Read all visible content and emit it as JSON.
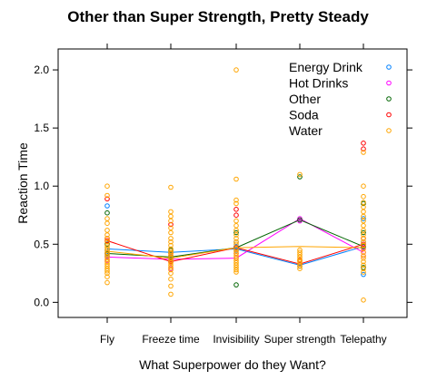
{
  "chart_data": {
    "type": "scatter",
    "title": "Other than Super Strength, Pretty Steady",
    "xlabel": "What Superpower do they Want?",
    "ylabel": "Reaction Time",
    "categories": [
      "Fly",
      "Freeze time",
      "Invisibility",
      "Super strength",
      "Telepathy"
    ],
    "yticks": [
      0.0,
      0.5,
      1.0,
      1.5,
      2.0
    ],
    "ytick_labels": [
      "0.0",
      "0.5",
      "1.0",
      "1.5",
      "2.0"
    ],
    "ylim": [
      -0.13,
      2.18
    ],
    "grid": false,
    "legend_position": "top-right",
    "series": [
      {
        "name": "Energy Drink",
        "color": "#0080ff",
        "mean_line": [
          0.46,
          0.43,
          0.46,
          0.32,
          0.48
        ],
        "points": [
          [
            0,
            0.83
          ],
          [
            0,
            0.5
          ],
          [
            0,
            0.45
          ],
          [
            0,
            0.4
          ],
          [
            1,
            0.44
          ],
          [
            1,
            0.4
          ],
          [
            1,
            0.36
          ],
          [
            2,
            0.52
          ],
          [
            2,
            0.48
          ],
          [
            2,
            0.45
          ],
          [
            3,
            0.33
          ],
          [
            3,
            0.31
          ],
          [
            4,
            0.24
          ],
          [
            4,
            0.48
          ],
          [
            4,
            0.72
          ],
          [
            4,
            0.52
          ]
        ]
      },
      {
        "name": "Hot Drinks",
        "color": "#ff00ff",
        "mean_line": [
          0.39,
          0.37,
          0.38,
          0.72,
          0.43
        ],
        "points": [
          [
            0,
            0.39
          ],
          [
            0,
            0.42
          ],
          [
            0,
            0.36
          ],
          [
            1,
            0.29
          ],
          [
            1,
            0.35
          ],
          [
            1,
            0.4
          ],
          [
            2,
            0.38
          ],
          [
            2,
            0.42
          ],
          [
            3,
            0.72
          ],
          [
            3,
            0.7
          ],
          [
            4,
            0.43
          ],
          [
            4,
            0.47
          ],
          [
            4,
            0.4
          ]
        ]
      },
      {
        "name": "Other",
        "color": "#006400",
        "mean_line": [
          0.42,
          0.39,
          0.47,
          0.71,
          0.48
        ],
        "points": [
          [
            0,
            0.77
          ],
          [
            0,
            0.5
          ],
          [
            0,
            0.42
          ],
          [
            1,
            0.39
          ],
          [
            1,
            0.45
          ],
          [
            2,
            0.15
          ],
          [
            2,
            0.47
          ],
          [
            2,
            0.6
          ],
          [
            3,
            1.08
          ],
          [
            3,
            0.71
          ],
          [
            4,
            0.85
          ],
          [
            4,
            0.6
          ],
          [
            4,
            0.48
          ],
          [
            4,
            0.3
          ]
        ]
      },
      {
        "name": "Soda",
        "color": "#ff0000",
        "mean_line": [
          0.53,
          0.35,
          0.47,
          0.33,
          0.5
        ],
        "points": [
          [
            0,
            0.89
          ],
          [
            0,
            0.53
          ],
          [
            0,
            0.55
          ],
          [
            1,
            0.67
          ],
          [
            1,
            0.35
          ],
          [
            1,
            0.42
          ],
          [
            2,
            0.8
          ],
          [
            2,
            0.75
          ],
          [
            2,
            0.47
          ],
          [
            3,
            0.33
          ],
          [
            3,
            0.36
          ],
          [
            4,
            1.37
          ],
          [
            4,
            1.32
          ],
          [
            4,
            0.5
          ],
          [
            4,
            0.55
          ]
        ]
      },
      {
        "name": "Water",
        "color": "#ffa500",
        "mean_line": [
          0.44,
          0.38,
          0.47,
          0.48,
          0.47
        ],
        "points": [
          [
            0,
            1.0
          ],
          [
            0,
            0.92
          ],
          [
            0,
            0.72
          ],
          [
            0,
            0.68
          ],
          [
            0,
            0.62
          ],
          [
            0,
            0.58
          ],
          [
            0,
            0.55
          ],
          [
            0,
            0.52
          ],
          [
            0,
            0.49
          ],
          [
            0,
            0.47
          ],
          [
            0,
            0.45
          ],
          [
            0,
            0.43
          ],
          [
            0,
            0.41
          ],
          [
            0,
            0.39
          ],
          [
            0,
            0.37
          ],
          [
            0,
            0.35
          ],
          [
            0,
            0.33
          ],
          [
            0,
            0.31
          ],
          [
            0,
            0.29
          ],
          [
            0,
            0.27
          ],
          [
            0,
            0.25
          ],
          [
            0,
            0.22
          ],
          [
            0,
            0.17
          ],
          [
            1,
            0.99
          ],
          [
            1,
            0.78
          ],
          [
            1,
            0.74
          ],
          [
            1,
            0.7
          ],
          [
            1,
            0.64
          ],
          [
            1,
            0.6
          ],
          [
            1,
            0.55
          ],
          [
            1,
            0.52
          ],
          [
            1,
            0.49
          ],
          [
            1,
            0.46
          ],
          [
            1,
            0.44
          ],
          [
            1,
            0.42
          ],
          [
            1,
            0.4
          ],
          [
            1,
            0.38
          ],
          [
            1,
            0.36
          ],
          [
            1,
            0.34
          ],
          [
            1,
            0.32
          ],
          [
            1,
            0.3
          ],
          [
            1,
            0.28
          ],
          [
            1,
            0.25
          ],
          [
            1,
            0.2
          ],
          [
            1,
            0.14
          ],
          [
            1,
            0.07
          ],
          [
            2,
            2.0
          ],
          [
            2,
            1.06
          ],
          [
            2,
            0.88
          ],
          [
            2,
            0.85
          ],
          [
            2,
            0.7
          ],
          [
            2,
            0.66
          ],
          [
            2,
            0.62
          ],
          [
            2,
            0.58
          ],
          [
            2,
            0.55
          ],
          [
            2,
            0.52
          ],
          [
            2,
            0.5
          ],
          [
            2,
            0.46
          ],
          [
            2,
            0.44
          ],
          [
            2,
            0.42
          ],
          [
            2,
            0.4
          ],
          [
            2,
            0.38
          ],
          [
            2,
            0.36
          ],
          [
            2,
            0.34
          ],
          [
            2,
            0.32
          ],
          [
            2,
            0.3
          ],
          [
            2,
            0.28
          ],
          [
            2,
            0.26
          ],
          [
            3,
            1.1
          ],
          [
            3,
            0.45
          ],
          [
            3,
            0.43
          ],
          [
            3,
            0.41
          ],
          [
            3,
            0.39
          ],
          [
            3,
            0.37
          ],
          [
            3,
            0.35
          ],
          [
            3,
            0.33
          ],
          [
            3,
            0.31
          ],
          [
            3,
            0.29
          ],
          [
            4,
            1.29
          ],
          [
            4,
            1.0
          ],
          [
            4,
            0.91
          ],
          [
            4,
            0.86
          ],
          [
            4,
            0.82
          ],
          [
            4,
            0.78
          ],
          [
            4,
            0.74
          ],
          [
            4,
            0.7
          ],
          [
            4,
            0.66
          ],
          [
            4,
            0.62
          ],
          [
            4,
            0.58
          ],
          [
            4,
            0.55
          ],
          [
            4,
            0.52
          ],
          [
            4,
            0.49
          ],
          [
            4,
            0.46
          ],
          [
            4,
            0.43
          ],
          [
            4,
            0.4
          ],
          [
            4,
            0.38
          ],
          [
            4,
            0.35
          ],
          [
            4,
            0.32
          ],
          [
            4,
            0.29
          ],
          [
            4,
            0.26
          ],
          [
            4,
            0.02
          ]
        ]
      }
    ]
  }
}
